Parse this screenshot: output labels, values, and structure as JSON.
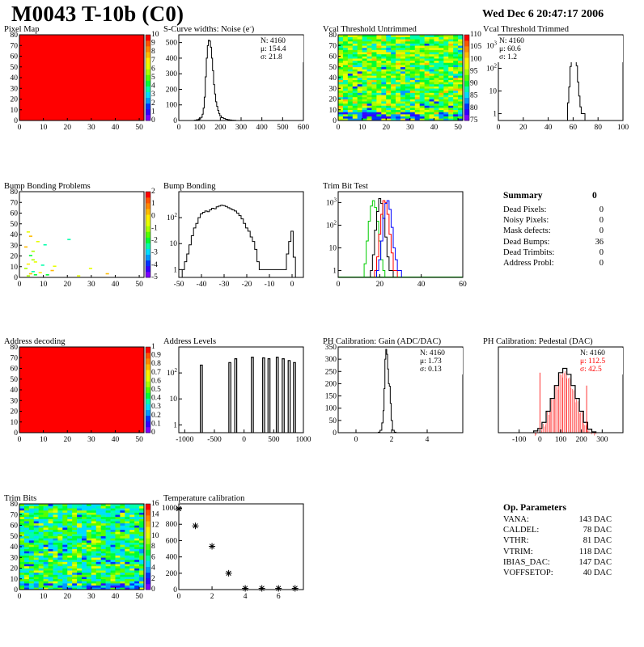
{
  "header": {
    "title": "M0043 T-10b (C0)",
    "date": "Wed Dec  6 20:47:17 2006"
  },
  "summary": {
    "title": "Summary",
    "total": "0",
    "rows": [
      {
        "label": "Dead Pixels:",
        "value": "0"
      },
      {
        "label": "Noisy Pixels:",
        "value": "0"
      },
      {
        "label": "Mask defects:",
        "value": "0"
      },
      {
        "label": "Dead Bumps:",
        "value": "36"
      },
      {
        "label": "Dead Trimbits:",
        "value": "0"
      },
      {
        "label": "Address Probl:",
        "value": "0"
      }
    ]
  },
  "op_parameters": {
    "title": "Op. Parameters",
    "rows": [
      {
        "label": "VANA:",
        "value": "143 DAC"
      },
      {
        "label": "CALDEL:",
        "value": "78 DAC"
      },
      {
        "label": "VTHR:",
        "value": "81 DAC"
      },
      {
        "label": "VTRIM:",
        "value": "118 DAC"
      },
      {
        "label": "IBIAS_DAC:",
        "value": "147 DAC"
      },
      {
        "label": "VOFFSETOP:",
        "value": "40 DAC"
      }
    ]
  },
  "colors": {
    "map_red": "#ff0000",
    "palette": [
      "#7f00ff",
      "#3300ff",
      "#0033ff",
      "#0099ff",
      "#00ddff",
      "#00ffaa",
      "#00ff33",
      "#55ff00",
      "#aaff00",
      "#e6ff00",
      "#ffee00",
      "#ffbb00",
      "#ff8800",
      "#ff5500",
      "#ff0000"
    ],
    "blue_line": "#0000ff",
    "green_line": "#00cc00",
    "red_line": "#ff0000",
    "mean_red": "#ff0000"
  },
  "chart_data": [
    {
      "id": "pixel_map",
      "type": "heatmap",
      "title": "Pixel Map",
      "xlim": [
        0,
        52
      ],
      "ylim": [
        0,
        80
      ],
      "xticks": [
        "0",
        "10",
        "20",
        "30",
        "40",
        "50"
      ],
      "yticks": [
        "0",
        "10",
        "20",
        "30",
        "40",
        "50",
        "60",
        "70",
        "80"
      ],
      "fill": "uniform",
      "palette_labels": [
        "0",
        "1",
        "2",
        "3",
        "4",
        "5",
        "6",
        "7",
        "8",
        "9",
        "10"
      ]
    },
    {
      "id": "scurve_noise",
      "type": "bar",
      "title": "S-Curve widths: Noise (e",
      "title_sup": "-",
      "title_tail": ")",
      "xlim": [
        0,
        600
      ],
      "ylim": [
        0,
        550
      ],
      "log": false,
      "xticks": [
        "0",
        "100",
        "200",
        "300",
        "400",
        "500",
        "600"
      ],
      "yticks": [
        "0",
        "100",
        "200",
        "300",
        "400",
        "500"
      ],
      "stats": [
        "N: 4160",
        "μ: 154.4",
        "σ: 21.8"
      ],
      "x": [
        80,
        90,
        100,
        110,
        115,
        120,
        125,
        130,
        135,
        140,
        145,
        150,
        155,
        160,
        165,
        170,
        175,
        180,
        185,
        190,
        195,
        200,
        210,
        220,
        230,
        240,
        250,
        260,
        270,
        280
      ],
      "values": [
        2,
        5,
        10,
        20,
        40,
        80,
        150,
        280,
        400,
        480,
        515,
        510,
        470,
        400,
        320,
        230,
        170,
        120,
        90,
        65,
        45,
        30,
        18,
        12,
        8,
        5,
        3,
        2,
        1,
        0
      ]
    },
    {
      "id": "vcal_untrimmed",
      "type": "heatmap",
      "title": "Vcal Threshold Untrimmed",
      "xlim": [
        0,
        52
      ],
      "ylim": [
        0,
        80
      ],
      "xticks": [
        "0",
        "10",
        "20",
        "30",
        "40",
        "50"
      ],
      "yticks": [
        "0",
        "10",
        "20",
        "30",
        "40",
        "50",
        "60",
        "70",
        "80"
      ],
      "fill": "noisy-cool",
      "palette_labels": [
        "75",
        "80",
        "85",
        "90",
        "95",
        "100",
        "105",
        "110"
      ]
    },
    {
      "id": "vcal_trimmed",
      "type": "bar",
      "title": "Vcal Threshold Trimmed",
      "xlim": [
        0,
        100
      ],
      "ylim": [
        0.5,
        3000
      ],
      "log": true,
      "xticks": [
        "0",
        "20",
        "40",
        "60",
        "80",
        "100"
      ],
      "yticks": [
        "1",
        "10",
        "10^2",
        "10^3"
      ],
      "stats": [
        "N: 4160",
        "μ: 60.6",
        "σ:  1.2"
      ],
      "x": [
        56,
        57,
        58,
        59,
        60,
        61,
        62,
        63,
        64,
        65,
        66,
        67,
        68,
        69,
        70,
        71
      ],
      "values": [
        3,
        15,
        120,
        600,
        1400,
        1300,
        550,
        130,
        25,
        6,
        2,
        1,
        1,
        1,
        0,
        0
      ]
    },
    {
      "id": "bump_bonding_problems",
      "type": "heatmap",
      "title": "Bump Bonding Problems",
      "xlim": [
        0,
        52
      ],
      "ylim": [
        0,
        80
      ],
      "xticks": [
        "0",
        "10",
        "20",
        "30",
        "40",
        "50"
      ],
      "yticks": [
        "0",
        "10",
        "20",
        "30",
        "40",
        "50",
        "60",
        "70",
        "80"
      ],
      "fill": "sparse",
      "palette_labels": [
        "-5",
        "-4",
        "-3",
        "-2",
        "-1",
        "0",
        "1",
        "2"
      ]
    },
    {
      "id": "bump_bonding",
      "type": "bar",
      "title": "Bump Bonding",
      "xlim": [
        -50,
        5
      ],
      "ylim": [
        0.5,
        1000
      ],
      "log": true,
      "xticks": [
        "-50",
        "-40",
        "-30",
        "-20",
        "-10",
        "0"
      ],
      "yticks": [
        "1",
        "10",
        "10^2"
      ],
      "x": [
        -48,
        -47,
        -46,
        -45,
        -44,
        -43,
        -42,
        -41,
        -40,
        -39,
        -38,
        -37,
        -36,
        -35,
        -34,
        -33,
        -32,
        -31,
        -30,
        -29,
        -28,
        -27,
        -26,
        -25,
        -24,
        -23,
        -22,
        -21,
        -20,
        -19,
        -18,
        -17,
        -16,
        -15,
        -14,
        -3,
        -2,
        -1,
        0,
        1
      ],
      "values": [
        1,
        2,
        4,
        9,
        20,
        40,
        60,
        100,
        140,
        160,
        180,
        170,
        200,
        230,
        220,
        260,
        280,
        300,
        290,
        270,
        240,
        220,
        200,
        180,
        150,
        120,
        90,
        60,
        40,
        30,
        18,
        12,
        6,
        2,
        1,
        1,
        4,
        12,
        30,
        3
      ]
    },
    {
      "id": "trim_bit_test",
      "type": "line",
      "title": "Trim Bit Test",
      "xlim": [
        0,
        60
      ],
      "ylim": [
        0.5,
        3000
      ],
      "log": true,
      "xticks": [
        "0",
        "20",
        "40",
        "60"
      ],
      "yticks": [
        "1",
        "10",
        "10^2",
        "10^3"
      ],
      "series": [
        {
          "color": "green",
          "x": [
            13,
            14,
            15,
            16,
            17,
            18,
            19,
            20,
            21,
            22
          ],
          "values": [
            2,
            20,
            150,
            700,
            1200,
            600,
            150,
            20,
            3,
            1
          ]
        },
        {
          "color": "black",
          "x": [
            16,
            17,
            18,
            19,
            20,
            21,
            22,
            23,
            24,
            25,
            26
          ],
          "values": [
            1,
            5,
            60,
            400,
            1500,
            900,
            200,
            30,
            4,
            1,
            1
          ]
        },
        {
          "color": "red",
          "x": [
            18,
            19,
            20,
            21,
            22,
            23,
            24,
            25,
            26,
            27,
            28
          ],
          "values": [
            1,
            4,
            40,
            300,
            1200,
            1000,
            300,
            40,
            6,
            1,
            1
          ]
        },
        {
          "color": "blue",
          "x": [
            19,
            20,
            21,
            22,
            23,
            24,
            25,
            26,
            27,
            28,
            29,
            30
          ],
          "values": [
            1,
            3,
            20,
            200,
            900,
            1200,
            500,
            80,
            10,
            3,
            1,
            1
          ]
        }
      ]
    },
    {
      "id": "address_decoding",
      "type": "heatmap",
      "title": "Address decoding",
      "xlim": [
        0,
        52
      ],
      "ylim": [
        0,
        80
      ],
      "xticks": [
        "0",
        "10",
        "20",
        "30",
        "40",
        "50"
      ],
      "yticks": [
        "0",
        "10",
        "20",
        "30",
        "40",
        "50",
        "60",
        "70",
        "80"
      ],
      "fill": "uniform",
      "palette_labels": [
        "0",
        "0.1",
        "0.2",
        "0.3",
        "0.4",
        "0.5",
        "0.6",
        "0.7",
        "0.8",
        "0.9",
        "1"
      ]
    },
    {
      "id": "address_levels",
      "type": "bar",
      "title": "Address Levels",
      "xlim": [
        -1100,
        1000
      ],
      "ylim": [
        0.5,
        1000
      ],
      "log": true,
      "xticks": [
        "-1000",
        "-500",
        "0",
        "500",
        "1000"
      ],
      "yticks": [
        "1",
        "10",
        "10^2"
      ],
      "x": [
        -720,
        -240,
        -140,
        140,
        330,
        420,
        560,
        660,
        760,
        850
      ],
      "values": [
        200,
        250,
        350,
        400,
        380,
        350,
        400,
        350,
        300,
        250
      ]
    },
    {
      "id": "ph_gain",
      "type": "bar",
      "title": "PH Calibration: Gain (ADC/DAC)",
      "xlim": [
        -1,
        6
      ],
      "ylim": [
        0,
        350
      ],
      "log": false,
      "xticks": [
        "0",
        "2",
        "4"
      ],
      "yticks": [
        "0",
        "50",
        "100",
        "150",
        "200",
        "250",
        "300",
        "350"
      ],
      "stats": [
        "N: 4160",
        "μ: 1.73",
        "σ: 0.13"
      ],
      "x": [
        1.3,
        1.4,
        1.5,
        1.55,
        1.6,
        1.65,
        1.7,
        1.75,
        1.8,
        1.85,
        1.9,
        1.95,
        2.0,
        2.1,
        2.2
      ],
      "values": [
        2,
        10,
        40,
        90,
        180,
        300,
        340,
        320,
        260,
        200,
        190,
        120,
        50,
        10,
        2
      ]
    },
    {
      "id": "ph_pedestal",
      "type": "bar",
      "title": "PH Calibration: Pedestal (DAC)",
      "xlim": [
        -200,
        400
      ],
      "ylim": [
        0,
        100
      ],
      "log": false,
      "xticks": [
        "-100",
        "0",
        "100",
        "200",
        "300"
      ],
      "yticks": [],
      "stats": [
        "N: 4160",
        "μ: 112.5",
        "σ: 42.5"
      ],
      "x": [
        -20,
        0,
        20,
        40,
        60,
        80,
        100,
        120,
        140,
        160,
        180,
        200,
        220,
        240,
        260
      ],
      "values": [
        2,
        5,
        12,
        25,
        40,
        55,
        70,
        75,
        68,
        55,
        40,
        25,
        12,
        4,
        1
      ]
    },
    {
      "id": "trim_bits",
      "type": "heatmap",
      "title": "Trim Bits",
      "xlim": [
        0,
        52
      ],
      "ylim": [
        0,
        80
      ],
      "xticks": [
        "0",
        "10",
        "20",
        "30",
        "40",
        "50"
      ],
      "yticks": [
        "0",
        "10",
        "20",
        "30",
        "40",
        "50",
        "60",
        "70",
        "80"
      ],
      "fill": "noisy-warm",
      "palette_labels": [
        "0",
        "2",
        "4",
        "6",
        "8",
        "10",
        "12",
        "14",
        "16"
      ]
    },
    {
      "id": "temperature_calibration",
      "type": "scatter",
      "title": "Temperature calibration",
      "xlim": [
        0,
        7.5
      ],
      "ylim": [
        0,
        1050
      ],
      "log": false,
      "xticks": [
        "0",
        "2",
        "4",
        "6"
      ],
      "yticks": [
        "0",
        "200",
        "400",
        "600",
        "800",
        "1000"
      ],
      "x": [
        0,
        1,
        2,
        3,
        4,
        5,
        6,
        7
      ],
      "values": [
        990,
        780,
        530,
        200,
        15,
        15,
        15,
        15
      ]
    }
  ]
}
